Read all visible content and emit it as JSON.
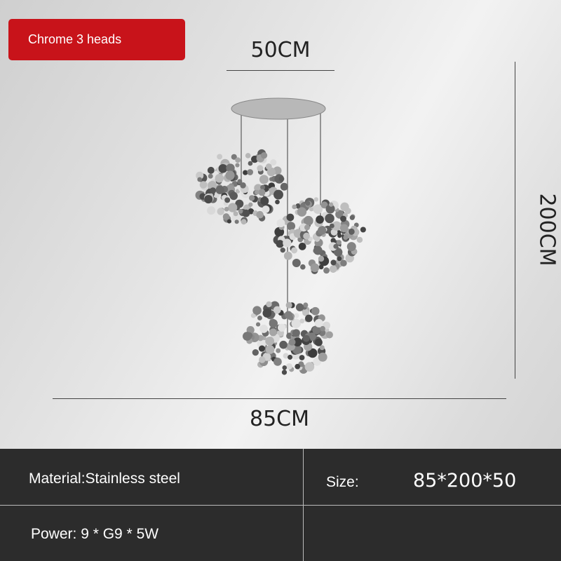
{
  "badge": {
    "label": "Chrome 3 heads",
    "color": "#c8131a"
  },
  "dimensions": {
    "width_top": "50CM",
    "height": "200CM",
    "width_bottom": "85CM"
  },
  "specs": {
    "material": "Material:Stainless steel",
    "size_label": "Size:",
    "size_value": "85*200*50",
    "power": "Power: 9 * G9 * 5W"
  }
}
